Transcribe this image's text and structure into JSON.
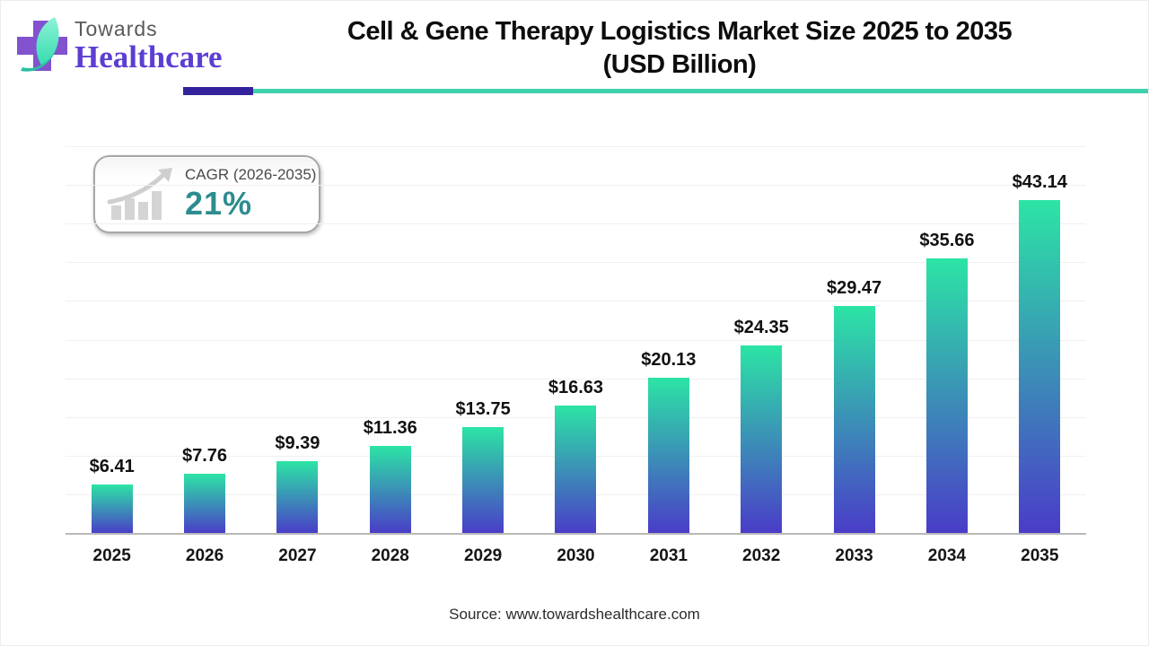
{
  "header": {
    "logo_line1": "Towards",
    "logo_line2": "Healthcare",
    "logo_icon": "cross-leaf-icon",
    "title_line1": "Cell & Gene Therapy Logistics Market Size 2025 to 2035",
    "title_line2": "(USD Billion)"
  },
  "badge": {
    "icon": "growth-chart-icon",
    "label": "CAGR (2026-2035)",
    "value": "21%"
  },
  "chart_data": {
    "type": "bar",
    "title": "Cell & Gene Therapy Logistics Market Size 2025 to 2035 (USD Billion)",
    "categories": [
      "2025",
      "2026",
      "2027",
      "2028",
      "2029",
      "2030",
      "2031",
      "2032",
      "2033",
      "2034",
      "2035"
    ],
    "values": [
      6.41,
      7.76,
      9.39,
      11.36,
      13.75,
      16.63,
      20.13,
      24.35,
      29.47,
      35.66,
      43.14
    ],
    "data_labels": [
      "$6.41",
      "$7.76",
      "$9.39",
      "$11.36",
      "$13.75",
      "$16.63",
      "$20.13",
      "$24.35",
      "$29.47",
      "$35.66",
      "$43.14"
    ],
    "xlabel": "",
    "ylabel": "",
    "ylim": [
      0,
      50
    ],
    "gridline_step": 5,
    "grid": true,
    "legend": false,
    "colors": {
      "bar_gradient_top": "#2ce4a5",
      "bar_gradient_bottom": "#4a3cc8",
      "gridline": "#f0f0f0",
      "axis_line": "#b8b8b8",
      "data_label": "#111111"
    }
  },
  "footer": {
    "source": "Source: www.towardshealthcare.com"
  },
  "brand_colors": {
    "logo_purple": "#8252cf",
    "logo_leaf": "#49e3bd",
    "logo_stem": "#2abfa3",
    "healthcare_text": "#5d3ed2",
    "rule_purple": "#33239c",
    "rule_teal": "#3fd2ae",
    "cagr_teal": "#2d8c8e"
  }
}
